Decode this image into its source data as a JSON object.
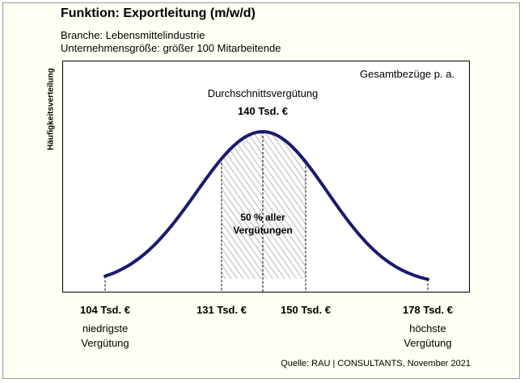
{
  "chart_data": {
    "type": "area",
    "title": "Funktion: Exportleitung (m/w/d)",
    "subtitle_lines": [
      "Branche: Lebensmittelindustrie",
      "Unternehmensgröße: größer 100 Mitarbeitende"
    ],
    "ylabel": "Häufigkeitsverteilung",
    "unit_label": "Gesamtbezüge p. a.",
    "average": {
      "label": "Durchschnittsvergütung",
      "value": 140,
      "value_label": "140 Tsd. €"
    },
    "middle_band": {
      "from": 131,
      "to": 150,
      "label_lines": [
        "50 % aller",
        "Vergütungen"
      ]
    },
    "markers": [
      {
        "value": 104,
        "label": "104 Tsd. €",
        "desc": [
          "niedrigste",
          "Vergütung"
        ]
      },
      {
        "value": 131,
        "label": "131 Tsd. €",
        "desc": []
      },
      {
        "value": 150,
        "label": "150 Tsd. €",
        "desc": []
      },
      {
        "value": 178,
        "label": "178 Tsd. €",
        "desc": [
          "höchste",
          "Vergütung"
        ]
      }
    ],
    "curve": {
      "min": 104,
      "max": 178,
      "peak": 140
    },
    "legend": "none",
    "grid": false,
    "source": "Quelle: RAU | CONSULTANTS, November 2021"
  },
  "colors": {
    "curve": "#1a1a6e",
    "frame_background": "#fffef2",
    "hatch": "#b8b8b8"
  }
}
